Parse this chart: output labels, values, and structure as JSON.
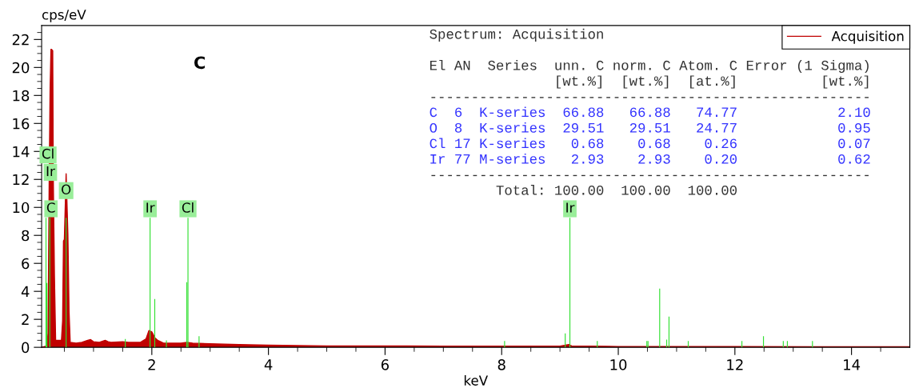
{
  "chart_data": {
    "type": "area",
    "title": "C",
    "xlabel": "keV",
    "ylabel": "cps/eV",
    "xlim": [
      0.11,
      15.0
    ],
    "ylim": [
      0,
      23
    ],
    "xticks": [
      {
        "value": 0.5,
        "label": null
      },
      {
        "value": 1.0,
        "label": null
      },
      {
        "value": 1.5,
        "label": null
      },
      2,
      {
        "value": 2.5,
        "label": null
      },
      {
        "value": 3.0,
        "label": null
      },
      {
        "value": 3.5,
        "label": null
      },
      4,
      {
        "value": 4.5,
        "label": null
      },
      {
        "value": 5.0,
        "label": null
      },
      {
        "value": 5.5,
        "label": null
      },
      6,
      {
        "value": 6.5,
        "label": null
      },
      {
        "value": 7.0,
        "label": null
      },
      {
        "value": 7.5,
        "label": null
      },
      8,
      {
        "value": 8.5,
        "label": null
      },
      {
        "value": 9.0,
        "label": null
      },
      {
        "value": 9.5,
        "label": null
      },
      10,
      {
        "value": 10.5,
        "label": null
      },
      {
        "value": 11.0,
        "label": null
      },
      {
        "value": 11.5,
        "label": null
      },
      12,
      {
        "value": 12.5,
        "label": null
      },
      {
        "value": 13.0,
        "label": null
      },
      {
        "value": 13.5,
        "label": null
      },
      14,
      {
        "value": 14.5,
        "label": null
      }
    ],
    "yticks": [
      0,
      {
        "value": 0.5,
        "label": null
      },
      {
        "value": 1.0,
        "label": null
      },
      {
        "value": 1.5,
        "label": null
      },
      2,
      {
        "value": 2.5,
        "label": null
      },
      {
        "value": 3.0,
        "label": null
      },
      {
        "value": 3.5,
        "label": null
      },
      4,
      {
        "value": 4.5,
        "label": null
      },
      {
        "value": 5.0,
        "label": null
      },
      {
        "value": 5.5,
        "label": null
      },
      6,
      {
        "value": 6.5,
        "label": null
      },
      {
        "value": 7.0,
        "label": null
      },
      {
        "value": 7.5,
        "label": null
      },
      8,
      {
        "value": 8.5,
        "label": null
      },
      {
        "value": 9.0,
        "label": null
      },
      {
        "value": 9.5,
        "label": null
      },
      10,
      {
        "value": 10.5,
        "label": null
      },
      {
        "value": 11.0,
        "label": null
      },
      {
        "value": 11.5,
        "label": null
      },
      12,
      {
        "value": 12.5,
        "label": null
      },
      {
        "value": 13.0,
        "label": null
      },
      {
        "value": 13.5,
        "label": null
      },
      14,
      {
        "value": 14.5,
        "label": null
      },
      {
        "value": 15.0,
        "label": null
      },
      {
        "value": 15.5,
        "label": null
      },
      16,
      {
        "value": 16.5,
        "label": null
      },
      {
        "value": 17.0,
        "label": null
      },
      {
        "value": 17.5,
        "label": null
      },
      18,
      {
        "value": 18.5,
        "label": null
      },
      {
        "value": 19.0,
        "label": null
      },
      {
        "value": 19.5,
        "label": null
      },
      20,
      {
        "value": 20.5,
        "label": null
      },
      {
        "value": 21.0,
        "label": null
      },
      {
        "value": 21.5,
        "label": null
      },
      22,
      {
        "value": 22.5,
        "label": null
      }
    ],
    "grid": false,
    "legend": "top right",
    "series": [
      {
        "name": "Acquisition",
        "color": "#c00000",
        "x": [
          0.11,
          0.2,
          0.22,
          0.24,
          0.255,
          0.27,
          0.28,
          0.3,
          0.31,
          0.33,
          0.35,
          0.4,
          0.45,
          0.47,
          0.485,
          0.5,
          0.53,
          0.56,
          0.58,
          0.6,
          0.7,
          0.8,
          0.9,
          0.95,
          1.0,
          1.1,
          1.2,
          1.25,
          1.3,
          1.5,
          1.6,
          1.8,
          1.9,
          1.95,
          2.0,
          2.05,
          2.1,
          2.2,
          2.5,
          2.6,
          2.7,
          3.0,
          3.5,
          4.0,
          4.5,
          5.0,
          6.0,
          7.0,
          8.0,
          9.0,
          9.15,
          9.2,
          10.0,
          12.0,
          15.0
        ],
        "values": [
          0,
          0.1,
          1.0,
          12,
          18.3,
          21.3,
          21.3,
          21.2,
          12,
          5,
          0.5,
          0.5,
          0.5,
          1.9,
          7.6,
          7.7,
          12.4,
          8.1,
          2.6,
          0.35,
          0.3,
          0.35,
          0.5,
          0.55,
          0.4,
          0.35,
          0.5,
          0.4,
          0.35,
          0.4,
          0.35,
          0.35,
          0.6,
          1.2,
          1.1,
          0.7,
          0.5,
          0.3,
          0.3,
          0.35,
          0.3,
          0.25,
          0.2,
          0.15,
          0.12,
          0.1,
          0.1,
          0.08,
          0.08,
          0.08,
          0.2,
          0.1,
          0.06,
          0.05,
          0.04
        ]
      },
      {
        "type": "bar",
        "color": "#33e033",
        "x": [
          0.185,
          0.2,
          0.25,
          0.53,
          1.545,
          1.97,
          2.05,
          2.25,
          2.6,
          2.62,
          2.81,
          8.05,
          9.09,
          9.17,
          9.64,
          10.49,
          10.51,
          10.71,
          10.83,
          10.87,
          11.2,
          12.12,
          12.49,
          12.83,
          12.9,
          13.33
        ],
        "values": [
          9.25,
          4.6,
          9.25,
          9.25,
          0.6,
          9.25,
          3.45,
          0.5,
          4.65,
          9.25,
          0.8,
          0.45,
          1.0,
          9.25,
          0.45,
          0.45,
          0.45,
          4.2,
          0.55,
          2.2,
          0.45,
          0.45,
          0.8,
          0.45,
          0.45,
          0.45
        ]
      }
    ],
    "annotations": [
      {
        "text": "C",
        "x": 0.27,
        "y": 9.9
      },
      {
        "text": "O",
        "x": 0.53,
        "y": 11.2
      },
      {
        "text": "Ir",
        "x": 0.26,
        "y": 12.5
      },
      {
        "text": "Cl",
        "x": 0.22,
        "y": 13.75
      },
      {
        "text": "Ir",
        "x": 1.97,
        "y": 9.9
      },
      {
        "text": "Cl",
        "x": 2.62,
        "y": 9.9
      },
      {
        "text": "Ir",
        "x": 9.17,
        "y": 9.9
      },
      "Spectrum: Acquisition",
      "El AN  Series  unn. C norm. C Atom. C Error (1 Sigma)",
      "               [wt.%]  [wt.%]  [at.%]          [wt.%]",
      "-----------------------------------------------------",
      "C  6  K-series  66.88   66.88   74.77            2.10",
      "O  8  K-series  29.51   29.51   24.77            0.95",
      "Cl 17 K-series   0.68    0.68    0.26            0.07",
      "Ir 77 M-series   2.93    2.93    0.20            0.62",
      "-----------------------------------------------------",
      "        Total: 100.00  100.00  100.00"
    ]
  }
}
